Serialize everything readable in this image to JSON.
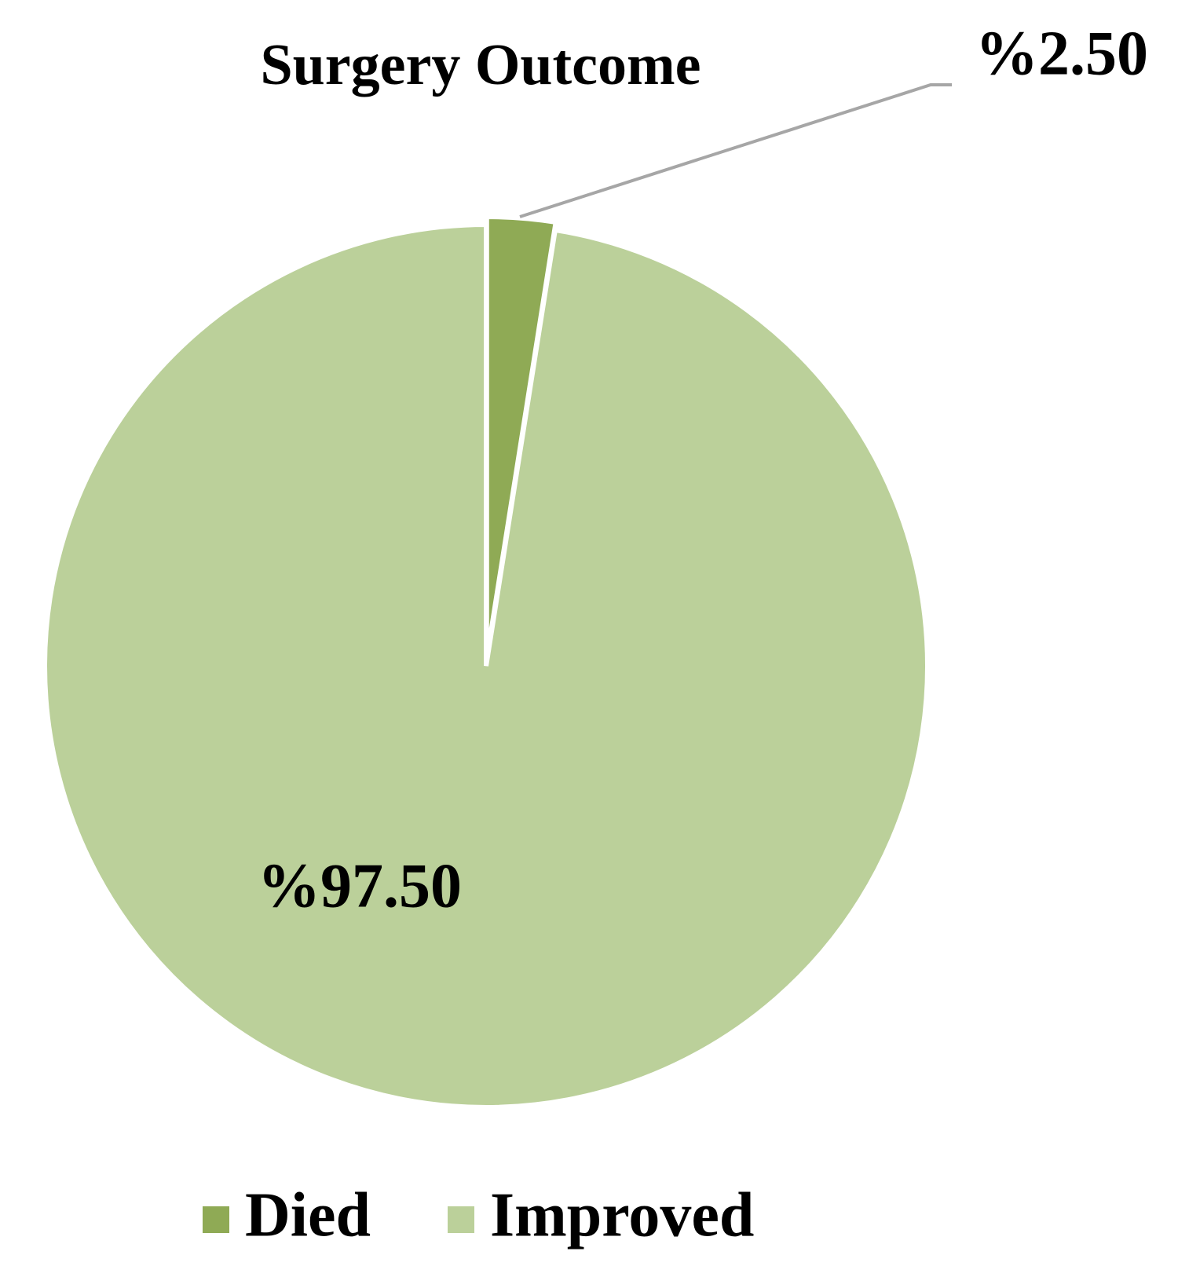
{
  "chart_data": {
    "type": "pie",
    "title": "Surgery Outcome",
    "categories": [
      "Died",
      "Improved"
    ],
    "values": [
      2.5,
      97.5
    ],
    "value_labels": [
      "%2.50",
      "%97.50"
    ],
    "colors": [
      "#8faa55",
      "#bbd09a"
    ],
    "legend": "bottom"
  }
}
